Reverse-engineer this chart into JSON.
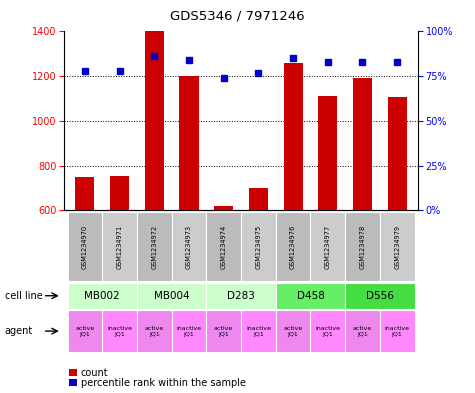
{
  "title": "GDS5346 / 7971246",
  "samples": [
    "GSM1234970",
    "GSM1234971",
    "GSM1234972",
    "GSM1234973",
    "GSM1234974",
    "GSM1234975",
    "GSM1234976",
    "GSM1234977",
    "GSM1234978",
    "GSM1234979"
  ],
  "counts": [
    750,
    755,
    1400,
    1200,
    620,
    700,
    1260,
    1110,
    1190,
    1105
  ],
  "percentiles": [
    78,
    78,
    86,
    84,
    74,
    77,
    85,
    83,
    83,
    83
  ],
  "ylim_left": [
    600,
    1400
  ],
  "ylim_right": [
    0,
    100
  ],
  "yticks_left": [
    600,
    800,
    1000,
    1200,
    1400
  ],
  "yticks_right": [
    0,
    25,
    50,
    75,
    100
  ],
  "ytick_labels_right": [
    "0%",
    "25%",
    "50%",
    "75%",
    "100%"
  ],
  "cell_lines": [
    {
      "label": "MB002",
      "cols": [
        0,
        1
      ],
      "color": "#ccffcc"
    },
    {
      "label": "MB004",
      "cols": [
        2,
        3
      ],
      "color": "#ccffcc"
    },
    {
      "label": "D283",
      "cols": [
        4,
        5
      ],
      "color": "#ccffcc"
    },
    {
      "label": "D458",
      "cols": [
        6,
        7
      ],
      "color": "#66ee66"
    },
    {
      "label": "D556",
      "cols": [
        8,
        9
      ],
      "color": "#44dd44"
    }
  ],
  "agents_labels": [
    "active\nJQ1",
    "inactive\nJQ1",
    "active\nJQ1",
    "inactive\nJQ1",
    "active\nJQ1",
    "inactive\nJQ1",
    "active\nJQ1",
    "inactive\nJQ1",
    "active\nJQ1",
    "inactive\nJQ1"
  ],
  "agent_colors": [
    "#ee88ee",
    "#ff88ff",
    "#ee88ee",
    "#ff88ff",
    "#ee88ee",
    "#ff88ff",
    "#ee88ee",
    "#ff88ff",
    "#ee88ee",
    "#ff88ff"
  ],
  "bar_color": "#cc0000",
  "dot_color": "#0000cc",
  "bar_width": 0.55,
  "background_color": "#ffffff",
  "sample_shades": [
    "#bbbbbb",
    "#cccccc",
    "#bbbbbb",
    "#cccccc",
    "#bbbbbb",
    "#cccccc",
    "#bbbbbb",
    "#cccccc",
    "#bbbbbb",
    "#cccccc"
  ]
}
